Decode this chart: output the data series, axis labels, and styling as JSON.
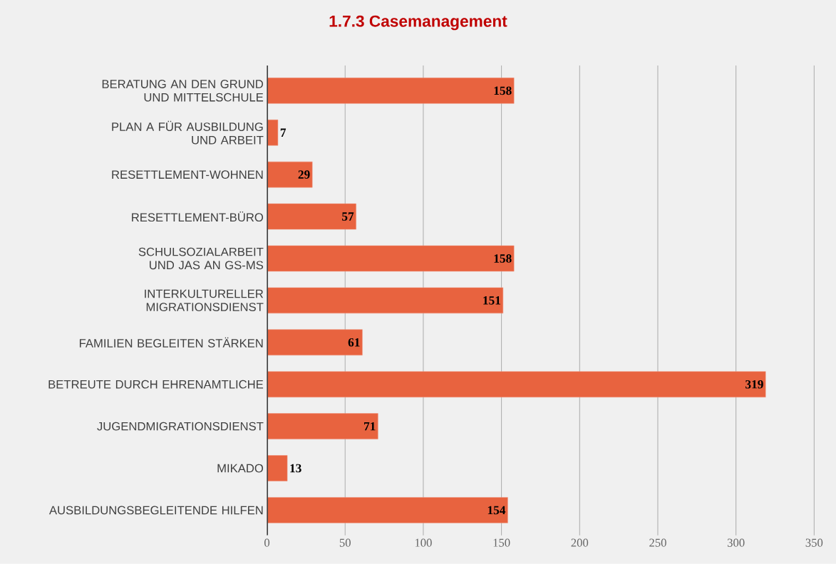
{
  "chart_data": {
    "type": "bar",
    "title": "1.7.3 Casemanagement",
    "orientation": "horizontal",
    "categories": [
      "BERATUNG AN DEN GRUND UND MITTELSCHULE",
      "PLAN A FÜR AUSBILDUNG UND ARBEIT",
      "RESETTLEMENT-WOHNEN",
      "RESETTLEMENT-BÜRO",
      "SCHULSOZIALARBEIT UND JAS AN GS-MS",
      "INTERKULTURELLER MIGRATIONSDIENST",
      "FAMILIEN BEGLEITEN STÄRKEN",
      "BETREUTE DURCH EHRENAMTLICHE",
      "JUGENDMIGRATIONSDIENST",
      "MIKADO",
      "AUSBILDUNGSBEGLEITENDE HILFEN"
    ],
    "values": [
      158,
      7,
      29,
      57,
      158,
      151,
      61,
      319,
      71,
      13,
      154
    ],
    "color": "#e8633f",
    "data_labels": true,
    "grid": "x",
    "xlim": [
      0,
      350
    ],
    "xticks": [
      0,
      50,
      100,
      150,
      200,
      250,
      300,
      350
    ]
  }
}
